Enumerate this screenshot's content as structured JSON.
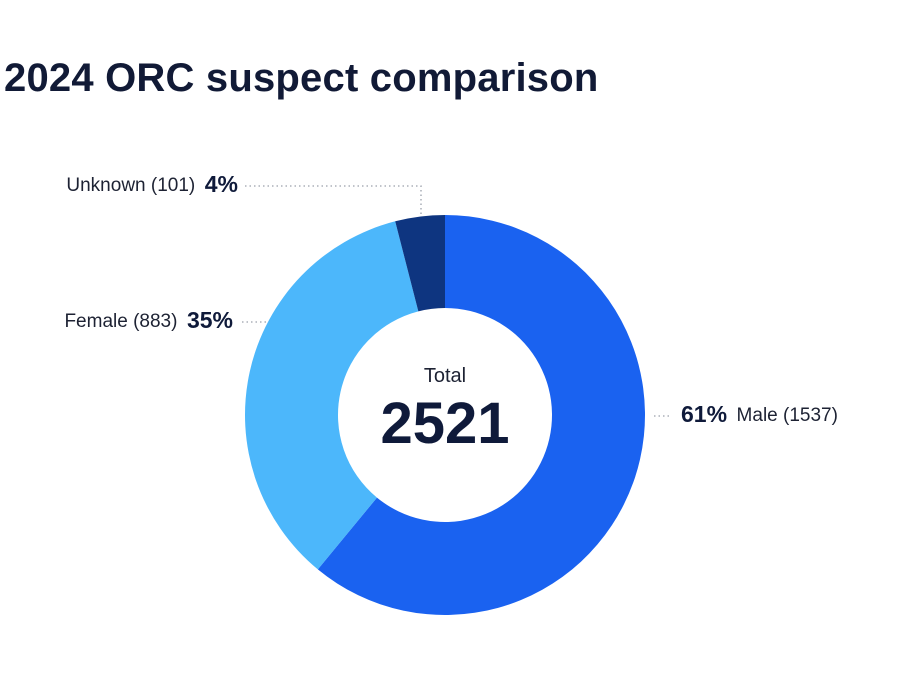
{
  "chart_data": {
    "type": "pie",
    "donut": true,
    "title": "2024 ORC suspect comparison",
    "center": {
      "caption": "Total",
      "value": "2521"
    },
    "slices": [
      {
        "label": "Male",
        "count": 1537,
        "percent": 61,
        "count_text": "(1537)",
        "percent_text": "61%",
        "color": "#1a62f0"
      },
      {
        "label": "Female",
        "count": 883,
        "percent": 35,
        "count_text": "(883)",
        "percent_text": "35%",
        "color": "#4cb7fb"
      },
      {
        "label": "Unknown",
        "count": 101,
        "percent": 4,
        "count_text": "(101)",
        "percent_text": "4%",
        "color": "#0e3580"
      }
    ]
  }
}
